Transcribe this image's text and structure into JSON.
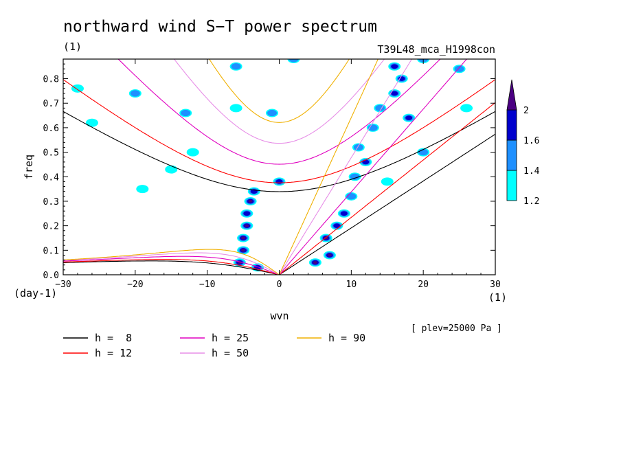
{
  "chart_data": {
    "type": "heatmap",
    "title": "northward wind S−T power spectrum",
    "subtitle_left": "(1)",
    "subtitle_right": "T39L48_mca_H1998con",
    "xlabel": "wvn",
    "ylabel": "freq",
    "x_unit": "(1)",
    "y_unit": "(day-1)",
    "annotation": "[ plev=25000 Pa ]",
    "xlim": [
      -30,
      30
    ],
    "ylim": [
      0,
      0.88
    ],
    "x_ticks": [
      -30,
      -20,
      -10,
      0,
      10,
      20,
      30
    ],
    "x_tick_labels": [
      "−30",
      "−20",
      "−10",
      "0",
      "10",
      "20",
      "30"
    ],
    "y_ticks": [
      0,
      0.1,
      0.2,
      0.3,
      0.4,
      0.5,
      0.6,
      0.7,
      0.8
    ],
    "y_tick_labels": [
      "0.0",
      "0.1",
      "0.2",
      "0.3",
      "0.4",
      "0.5",
      "0.6",
      "0.7",
      "0.8"
    ],
    "grid": false,
    "colorbar": {
      "levels": [
        1.2,
        1.4,
        1.6,
        2
      ],
      "labels": [
        "1.2",
        "1.4",
        "1.6",
        "2"
      ],
      "colors": [
        "#00ffff",
        "#1e90ff",
        "#0000cd",
        "#4b0082"
      ]
    },
    "contour_regions": [
      {
        "x": -3.5,
        "y": 0.34,
        "level": 1.6
      },
      {
        "x": -4,
        "y": 0.3,
        "level": 2
      },
      {
        "x": -4.5,
        "y": 0.25,
        "level": 1.6
      },
      {
        "x": -4.5,
        "y": 0.2,
        "level": 2
      },
      {
        "x": -5,
        "y": 0.15,
        "level": 2
      },
      {
        "x": -5,
        "y": 0.1,
        "level": 2
      },
      {
        "x": -5.5,
        "y": 0.05,
        "level": 2
      },
      {
        "x": -3,
        "y": 0.03,
        "level": 1.6
      },
      {
        "x": 5,
        "y": 0.05,
        "level": 2
      },
      {
        "x": 7,
        "y": 0.08,
        "level": 2
      },
      {
        "x": 6.5,
        "y": 0.15,
        "level": 2
      },
      {
        "x": 8,
        "y": 0.2,
        "level": 1.6
      },
      {
        "x": 9,
        "y": 0.25,
        "level": 1.6
      },
      {
        "x": 10,
        "y": 0.32,
        "level": 1.4
      },
      {
        "x": 10.5,
        "y": 0.4,
        "level": 1.4
      },
      {
        "x": 12,
        "y": 0.46,
        "level": 1.6
      },
      {
        "x": 11,
        "y": 0.52,
        "level": 1.4
      },
      {
        "x": 13,
        "y": 0.6,
        "level": 1.4
      },
      {
        "x": 14,
        "y": 0.68,
        "level": 1.4
      },
      {
        "x": 16,
        "y": 0.74,
        "level": 1.6
      },
      {
        "x": 17,
        "y": 0.8,
        "level": 1.6
      },
      {
        "x": 16,
        "y": 0.85,
        "level": 1.6
      },
      {
        "x": 25,
        "y": 0.84,
        "level": 1.4
      },
      {
        "x": 18,
        "y": 0.64,
        "level": 1.6
      },
      {
        "x": 20,
        "y": 0.5,
        "level": 1.4
      },
      {
        "x": 15,
        "y": 0.38,
        "level": 1.2
      },
      {
        "x": 0,
        "y": 0.38,
        "level": 1.6
      },
      {
        "x": -1,
        "y": 0.66,
        "level": 1.4
      },
      {
        "x": -6,
        "y": 0.68,
        "level": 1.2
      },
      {
        "x": -13,
        "y": 0.66,
        "level": 1.4
      },
      {
        "x": -20,
        "y": 0.74,
        "level": 1.4
      },
      {
        "x": -26,
        "y": 0.62,
        "level": 1.2
      },
      {
        "x": -6,
        "y": 0.85,
        "level": 1.4
      },
      {
        "x": 2,
        "y": 0.88,
        "level": 1.4
      },
      {
        "x": -15,
        "y": 0.43,
        "level": 1.2
      },
      {
        "x": -19,
        "y": 0.35,
        "level": 1.2
      },
      {
        "x": -12,
        "y": 0.5,
        "level": 1.2
      },
      {
        "x": 26,
        "y": 0.68,
        "level": 1.2
      },
      {
        "x": 20,
        "y": 0.88,
        "level": 1.4
      },
      {
        "x": -28,
        "y": 0.76,
        "level": 1.2
      }
    ],
    "series": [
      {
        "name": "h =  8",
        "color": "#000000",
        "h": 8
      },
      {
        "name": "h = 12",
        "color": "#ff0000",
        "h": 12
      },
      {
        "name": "h = 25",
        "color": "#e000c0",
        "h": 25
      },
      {
        "name": "h = 50",
        "color": "#e78ee7",
        "h": 50
      },
      {
        "name": "h = 90",
        "color": "#f0b000",
        "h": 90
      }
    ]
  }
}
